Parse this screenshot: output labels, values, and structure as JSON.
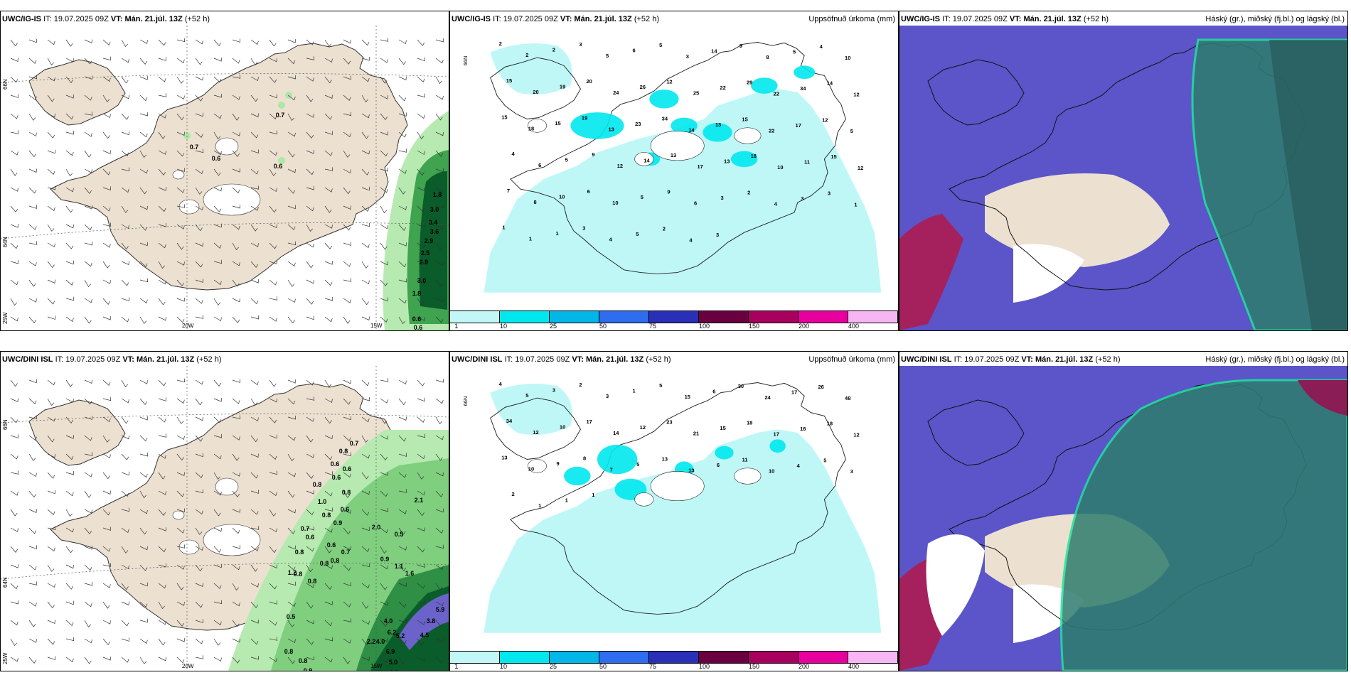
{
  "panels": {
    "top_wind": {
      "model": "UWC/IG-IS",
      "it_label": "IT:",
      "it_time": "19.07.2025 09Z",
      "vt_label": "VT:",
      "vt_time": "Mán. 21.júl. 13Z",
      "lead": "(+52 h)",
      "lat_labels": [
        "66N",
        "64N",
        "25W"
      ],
      "lon_labels": [
        "20W",
        "15W"
      ],
      "values": [
        "0.7",
        "0.7",
        "0.6",
        "0.6",
        "1.8",
        "3.0",
        "3.4",
        "3.6",
        "2.9",
        "2.5",
        "2.9",
        "3.0",
        "1.8",
        "0.6",
        "0.6"
      ]
    },
    "top_precip": {
      "model": "UWC/IG-IS",
      "it_label": "IT:",
      "it_time": "19.07.2025 09Z",
      "vt_label": "VT:",
      "vt_time": "Mán. 21.júl. 13Z",
      "lead": "(+52 h)",
      "right_title": "Uppsöfnuð úrkoma (mm)",
      "lat_label": "66N",
      "values": [
        "2",
        "2",
        "2",
        "3",
        "5",
        "6",
        "5",
        "3",
        "14",
        "9",
        "8",
        "5",
        "4",
        "10",
        "15",
        "20",
        "19",
        "20",
        "24",
        "26",
        "12",
        "25",
        "22",
        "29",
        "22",
        "34",
        "14",
        "12",
        "15",
        "18",
        "15",
        "19",
        "13",
        "23",
        "34",
        "14",
        "13",
        "15",
        "22",
        "17",
        "12",
        "5",
        "4",
        "6",
        "5",
        "9",
        "12",
        "14",
        "13",
        "17",
        "13",
        "18",
        "10",
        "11",
        "15",
        "12",
        "7",
        "8",
        "10",
        "6",
        "10",
        "5",
        "9",
        "6",
        "3",
        "2",
        "4",
        "3",
        "3",
        "1",
        "1",
        "1",
        "1",
        "3",
        "4",
        "5",
        "2",
        "4",
        "3"
      ]
    },
    "top_cloud": {
      "model": "UWC/IG-IS",
      "it_label": "IT:",
      "it_time": "19.07.2025 09Z",
      "vt_label": "VT:",
      "vt_time": "Mán. 21.júl. 13Z",
      "lead": "(+52 h)",
      "right_title": "Háský (gr.), miðský (fj.bl.) og lágský (bl.)"
    },
    "bottom_wind": {
      "model": "UWC/DINI ISL",
      "it_label": "IT:",
      "it_time": "19.07.2025 09Z",
      "vt_label": "VT:",
      "vt_time": "Mán. 21.júl. 13Z",
      "lead": "(+52 h)",
      "lat_labels": [
        "66N",
        "64N",
        "25W"
      ],
      "lon_labels": [
        "20W",
        "15W"
      ],
      "values": [
        "0.8",
        "0.7",
        "0.6",
        "0.6",
        "0.6",
        "0.8",
        "0.8",
        "1.0",
        "0.6",
        "0.8",
        "0.9",
        "0.7",
        "0.6",
        "0.6",
        "0.8",
        "0.7",
        "0.8",
        "0.8",
        "1.2",
        "0.8",
        "0.8",
        "2.0",
        "0.5",
        "0.9",
        "1.1",
        "2.1",
        "1.6",
        "0.5",
        "4.0",
        "6.2",
        "5.2",
        "4.5",
        "3.8",
        "5.9",
        "2.2",
        "4.0",
        "6.9",
        "5.0",
        "6.8",
        "7.3",
        "4.1",
        "0.8",
        "0.8",
        "0.9",
        "0.6",
        "0.6",
        "1.6"
      ]
    },
    "bottom_precip": {
      "model": "UWC/DINI ISL",
      "it_label": "IT:",
      "it_time": "19.07.2025 09Z",
      "vt_label": "VT:",
      "vt_time": "Mán. 21.júl. 13Z",
      "lead": "(+52 h)",
      "right_title": "Uppsöfnuð úrkoma (mm)",
      "lat_label": "66N",
      "values": [
        "4",
        "5",
        "3",
        "2",
        "3",
        "1",
        "5",
        "15",
        "6",
        "30",
        "24",
        "17",
        "26",
        "48",
        "34",
        "12",
        "10",
        "17",
        "14",
        "12",
        "23",
        "21",
        "15",
        "18",
        "17",
        "16",
        "18",
        "12",
        "13",
        "10",
        "9",
        "8",
        "7",
        "5",
        "13",
        "13",
        "6",
        "11",
        "10",
        "4",
        "5",
        "3",
        "2",
        "1",
        "1",
        "1"
      ]
    },
    "bottom_cloud": {
      "model": "UWC/DINI ISL",
      "it_label": "IT:",
      "it_time": "19.07.2025 09Z",
      "vt_label": "VT:",
      "vt_time": "Mán. 21.júl. 13Z",
      "lead": "(+52 h)",
      "right_title": "Háský (gr.), miðský (fj.bl.) og lágský (bl.)"
    }
  },
  "colorbar": {
    "labels": [
      "1",
      "10",
      "25",
      "50",
      "75",
      "100",
      "150",
      "200",
      "400"
    ],
    "colors": [
      "#c2f7f7",
      "#00e8ee",
      "#00b7e8",
      "#2f6df0",
      "#2a2fb8",
      "#6a0040",
      "#a8005f",
      "#e8009e",
      "#f6b6f3"
    ]
  },
  "colors": {
    "land": "#ece0d1",
    "sea": "#ffffff",
    "precip_light": "#bff7f7",
    "precip_cyan": "#00e8ee",
    "cloud_low": "#5b55c9",
    "cloud_mid": "#2b5bd9",
    "cloud_high": "#2e7d6e",
    "green_dark": "#0a5c2a",
    "green_light": "#b7eab0"
  }
}
